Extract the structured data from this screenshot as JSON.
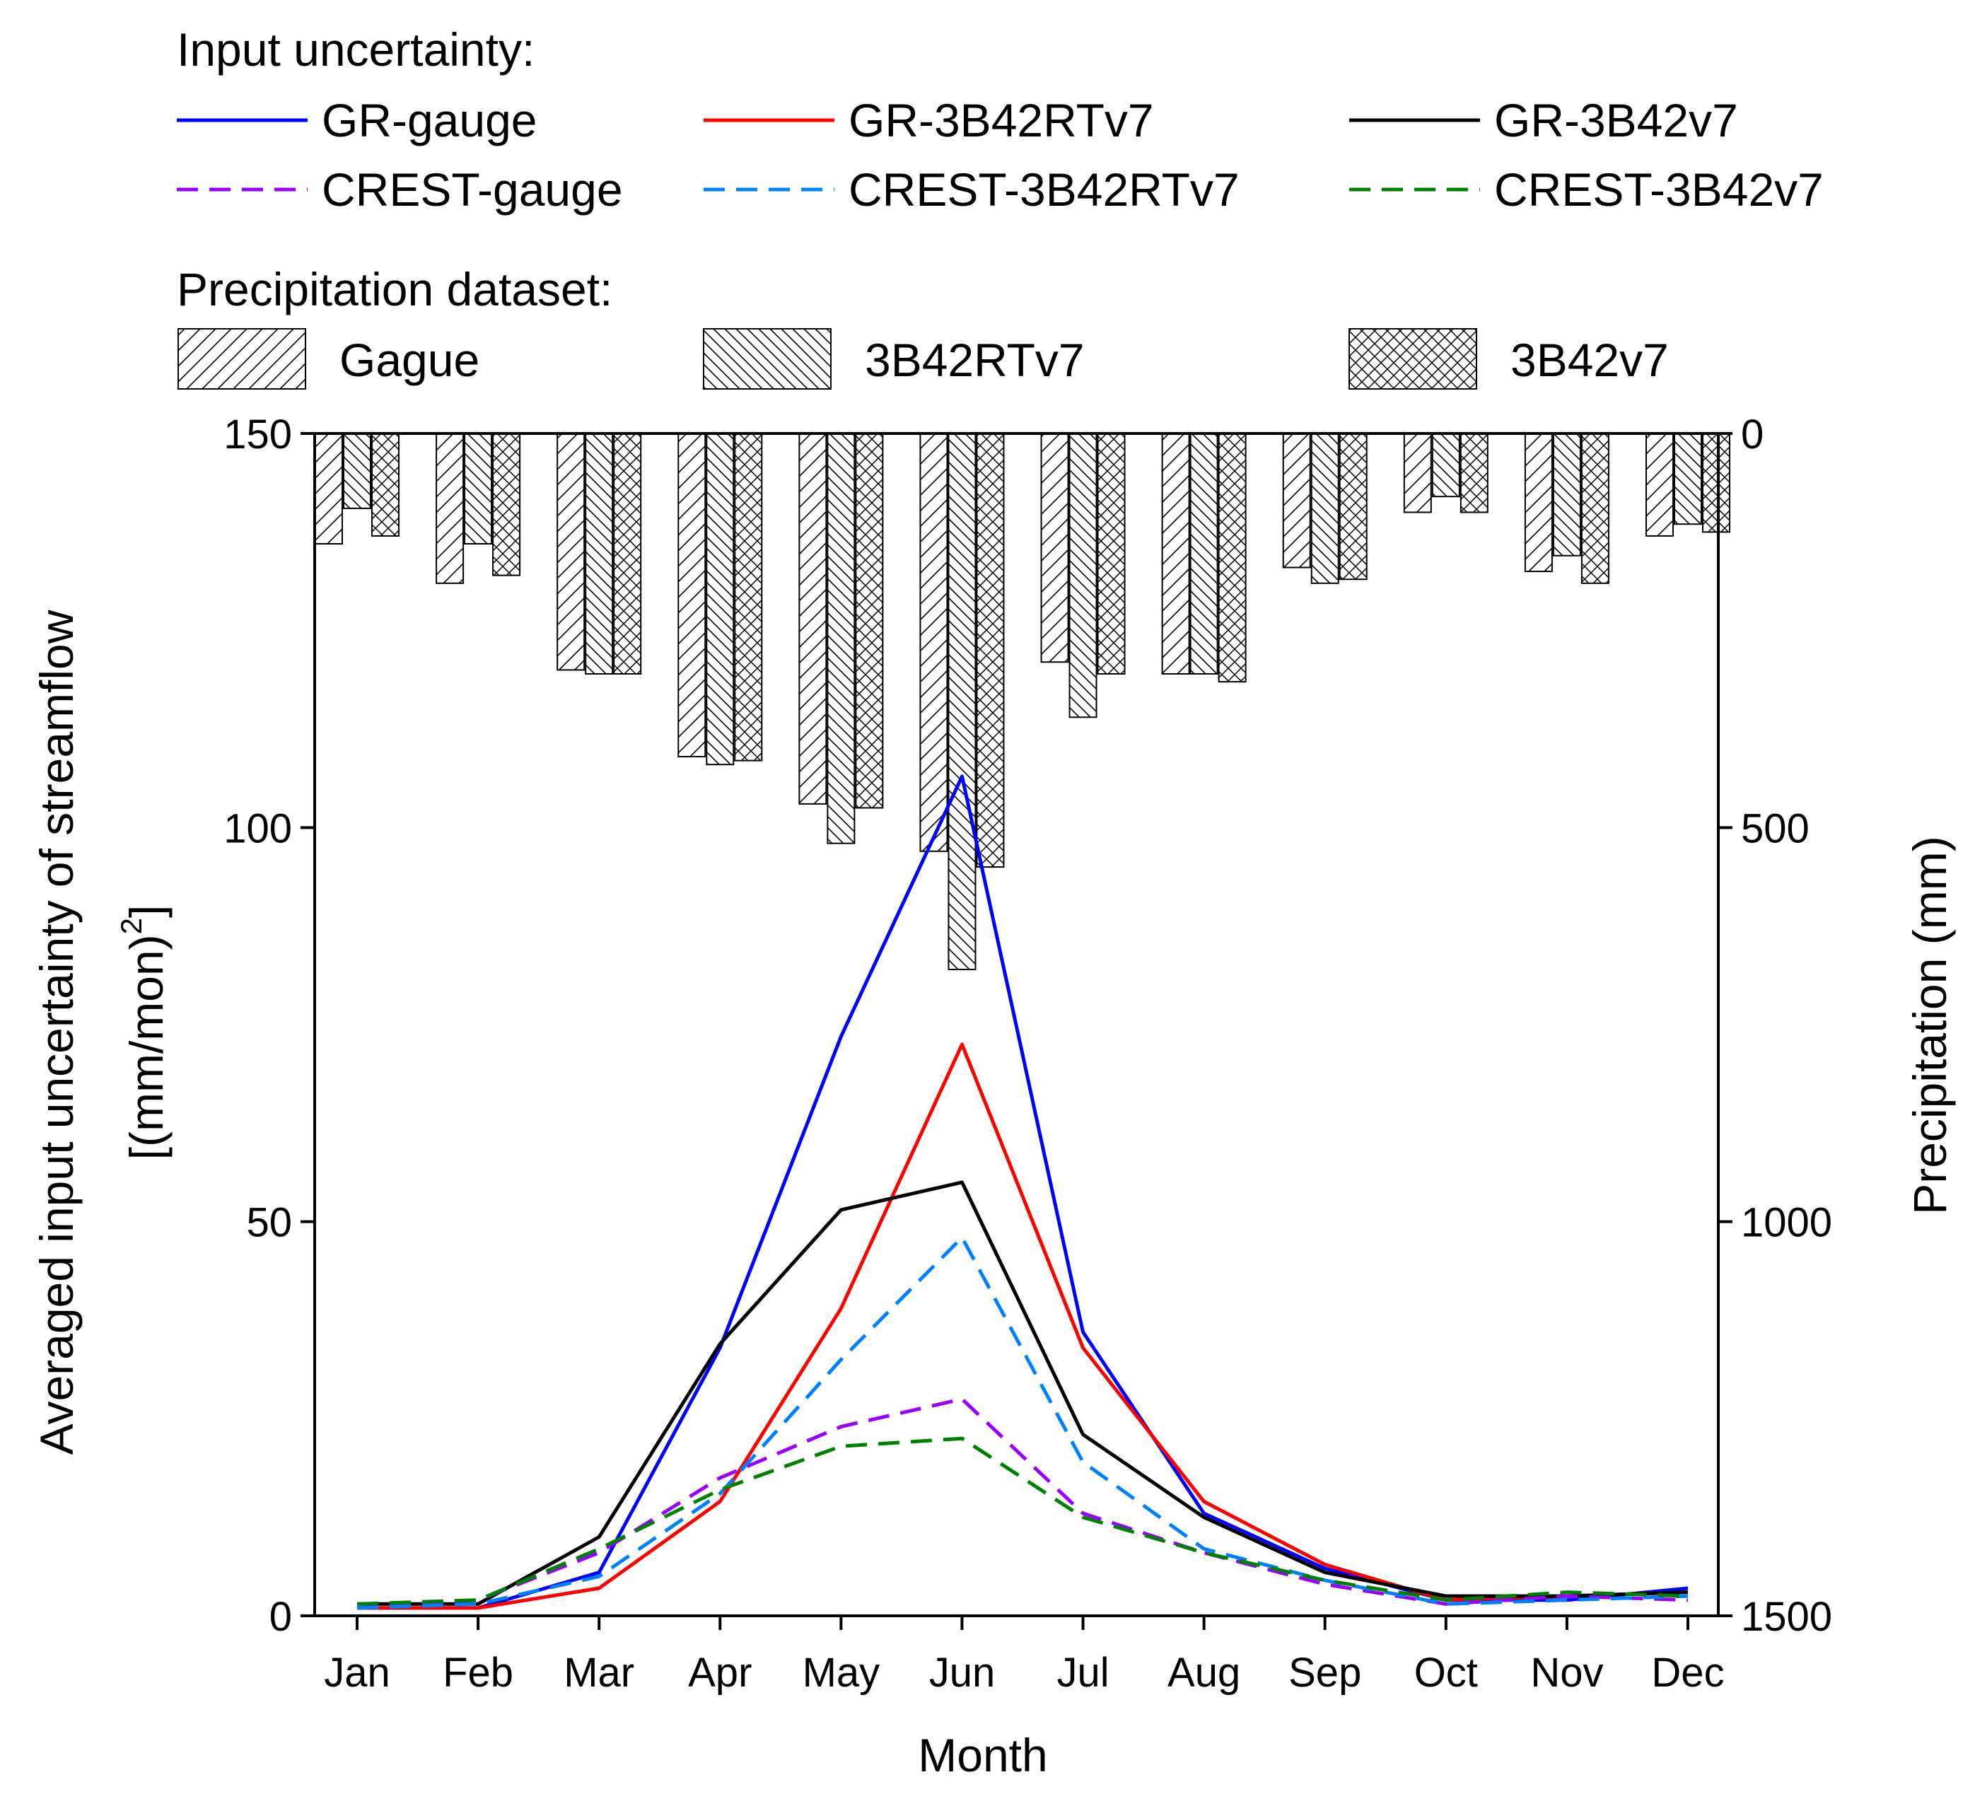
{
  "chart_data": {
    "type": "line",
    "x": [
      "Jan",
      "Feb",
      "Mar",
      "Apr",
      "May",
      "Jun",
      "Jul",
      "Aug",
      "Sep",
      "Oct",
      "Nov",
      "Dec"
    ],
    "xlabel": "Month",
    "ylabel": "Averaged input uncertainty of streamflow",
    "ylabel_unit": "[(mm/mon)",
    "ylabel_unit_sup": "2",
    "ylabel_unit_end": "]",
    "ylim": [
      0,
      150
    ],
    "yticks": [
      0,
      50,
      100,
      150
    ],
    "y2label": "Precipitation (mm)",
    "y2lim": [
      0,
      1500
    ],
    "y2ticks": [
      0,
      500,
      1000,
      1500
    ],
    "y2_inverted": true,
    "legend_lines_title": "Input uncertainty:",
    "legend_bars_title": "Precipitation dataset:",
    "series": [
      {
        "name": "GR-gauge",
        "color": "#0000ff",
        "dash": false,
        "values": [
          1.0,
          1.0,
          5.5,
          34.0,
          73.5,
          106.5,
          36.0,
          13.0,
          6.0,
          2.0,
          2.0,
          3.5
        ]
      },
      {
        "name": "GR-3B42RTv7",
        "color": "#ff0000",
        "dash": false,
        "values": [
          1.0,
          1.0,
          3.5,
          14.5,
          39.0,
          72.5,
          34.0,
          14.5,
          6.5,
          2.0,
          2.5,
          3.0
        ]
      },
      {
        "name": "GR-3B42v7",
        "color": "#000000",
        "dash": false,
        "values": [
          1.5,
          1.5,
          10.0,
          34.5,
          51.5,
          55.0,
          23.0,
          12.5,
          5.5,
          2.5,
          2.5,
          3.0
        ]
      },
      {
        "name": "CREST-gauge",
        "color": "#9900ff",
        "dash": true,
        "values": [
          1.0,
          2.0,
          8.0,
          17.5,
          24.0,
          27.5,
          13.0,
          8.0,
          4.0,
          1.5,
          2.5,
          2.0
        ]
      },
      {
        "name": "CREST-3B42RTv7",
        "color": "#0080ff",
        "dash": true,
        "values": [
          1.0,
          1.5,
          5.0,
          15.5,
          32.5,
          48.0,
          19.5,
          8.5,
          4.5,
          1.5,
          2.0,
          2.5
        ]
      },
      {
        "name": "CREST-3B42v7",
        "color": "#008000",
        "dash": true,
        "values": [
          1.5,
          2.0,
          8.5,
          16.0,
          21.5,
          22.5,
          12.5,
          8.0,
          4.5,
          2.0,
          3.0,
          2.5
        ]
      }
    ],
    "bar_series": [
      {
        "name": "Gague",
        "pattern": "forward-hatch",
        "values": [
          140,
          190,
          300,
          410,
          470,
          530,
          290,
          305,
          170,
          100,
          175,
          130
        ]
      },
      {
        "name": "3B42RTv7",
        "pattern": "back-hatch",
        "values": [
          95,
          140,
          305,
          420,
          520,
          680,
          360,
          305,
          190,
          80,
          155,
          115
        ]
      },
      {
        "name": "3B42v7",
        "pattern": "cross-hatch",
        "values": [
          130,
          180,
          305,
          415,
          475,
          550,
          305,
          315,
          185,
          100,
          190,
          125
        ]
      }
    ]
  }
}
